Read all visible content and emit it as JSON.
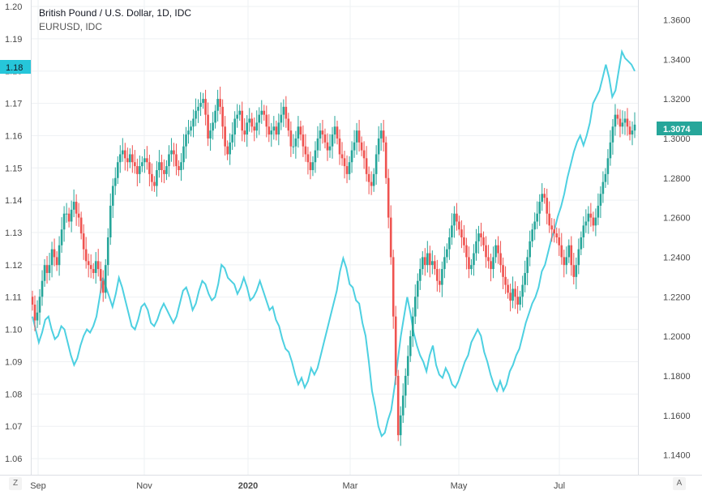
{
  "legend": {
    "title": "British Pound / U.S. Dollar, 1D, IDC",
    "series2": "EURUSD, IDC"
  },
  "buttons": {
    "left": "Z",
    "right": "A"
  },
  "colors": {
    "up": "#26a69a",
    "down": "#ef5350",
    "line": "#4dd0e1",
    "last_price_bg": "#26a69a",
    "left_tag_bg": "#26c6da",
    "grid": "#eef0f3"
  },
  "chart_data": {
    "type": "candlestick+line",
    "x_ticks": [
      "Sep",
      "Nov",
      "2020",
      "Mar",
      "May",
      "Jul"
    ],
    "left_axis": {
      "series": "EURUSD, IDC",
      "ticks": [
        "1.20",
        "1.19",
        "1.18",
        "1.17",
        "1.16",
        "1.15",
        "1.14",
        "1.13",
        "1.12",
        "1.11",
        "1.10",
        "1.09",
        "1.08",
        "1.07",
        "1.06"
      ],
      "range": [
        1.055,
        1.202
      ],
      "current": "1.18"
    },
    "right_axis": {
      "series": "British Pound / U.S. Dollar",
      "ticks": [
        "1.3600",
        "1.3400",
        "1.3200",
        "1.3000",
        "1.2800",
        "1.2600",
        "1.2400",
        "1.2200",
        "1.2000",
        "1.1800",
        "1.1600",
        "1.1400"
      ],
      "range": [
        1.13,
        1.37
      ],
      "current": "1.3074"
    },
    "gbpusd_close": [
      1.216,
      1.208,
      1.212,
      1.22,
      1.228,
      1.236,
      1.232,
      1.236,
      1.244,
      1.24,
      1.236,
      1.246,
      1.254,
      1.262,
      1.262,
      1.258,
      1.264,
      1.268,
      1.262,
      1.26,
      1.252,
      1.244,
      1.238,
      1.236,
      1.234,
      1.232,
      1.238,
      1.234,
      1.228,
      1.222,
      1.236,
      1.25,
      1.266,
      1.276,
      1.28,
      1.288,
      1.292,
      1.294,
      1.29,
      1.288,
      1.292,
      1.288,
      1.286,
      1.282,
      1.286,
      1.288,
      1.29,
      1.288,
      1.282,
      1.278,
      1.276,
      1.284,
      1.288,
      1.284,
      1.282,
      1.286,
      1.292,
      1.294,
      1.292,
      1.286,
      1.284,
      1.288,
      1.296,
      1.302,
      1.304,
      1.306,
      1.31,
      1.314,
      1.316,
      1.318,
      1.32,
      1.312,
      1.3,
      1.304,
      1.308,
      1.314,
      1.32,
      1.316,
      1.306,
      1.296,
      1.292,
      1.298,
      1.302,
      1.31,
      1.312,
      1.314,
      1.304,
      1.302,
      1.308,
      1.31,
      1.306,
      1.304,
      1.308,
      1.312,
      1.314,
      1.312,
      1.306,
      1.302,
      1.304,
      1.306,
      1.302,
      1.308,
      1.312,
      1.316,
      1.31,
      1.304,
      1.296,
      1.296,
      1.3,
      1.306,
      1.302,
      1.296,
      1.292,
      1.288,
      1.284,
      1.288,
      1.294,
      1.3,
      1.304,
      1.302,
      1.298,
      1.294,
      1.296,
      1.302,
      1.306,
      1.3,
      1.292,
      1.29,
      1.286,
      1.282,
      1.288,
      1.294,
      1.298,
      1.304,
      1.298,
      1.294,
      1.29,
      1.282,
      1.278,
      1.276,
      1.282,
      1.292,
      1.3,
      1.304,
      1.298,
      1.28,
      1.26,
      1.24,
      1.21,
      1.18,
      1.15,
      1.16,
      1.17,
      1.18,
      1.19,
      1.2,
      1.21,
      1.22,
      1.228,
      1.234,
      1.24,
      1.236,
      1.242,
      1.236,
      1.238,
      1.234,
      1.228,
      1.226,
      1.234,
      1.24,
      1.244,
      1.25,
      1.256,
      1.262,
      1.258,
      1.254,
      1.25,
      1.246,
      1.24,
      1.234,
      1.236,
      1.242,
      1.248,
      1.252,
      1.25,
      1.246,
      1.24,
      1.238,
      1.234,
      1.24,
      1.246,
      1.242,
      1.236,
      1.23,
      1.226,
      1.222,
      1.218,
      1.224,
      1.22,
      1.216,
      1.22,
      1.226,
      1.232,
      1.24,
      1.248,
      1.254,
      1.258,
      1.262,
      1.268,
      1.272,
      1.27,
      1.262,
      1.256,
      1.254,
      1.252,
      1.25,
      1.246,
      1.24,
      1.236,
      1.24,
      1.246,
      1.236,
      1.23,
      1.236,
      1.244,
      1.25,
      1.256,
      1.258,
      1.262,
      1.26,
      1.256,
      1.26,
      1.266,
      1.272,
      1.278,
      1.282,
      1.29,
      1.298,
      1.306,
      1.312,
      1.31,
      1.306,
      1.308,
      1.31,
      1.306,
      1.302,
      1.304,
      1.307
    ],
    "eurusd_line": [
      1.104,
      1.1,
      1.096,
      1.099,
      1.103,
      1.104,
      1.1,
      1.097,
      1.098,
      1.101,
      1.1,
      1.096,
      1.092,
      1.089,
      1.091,
      1.095,
      1.098,
      1.1,
      1.099,
      1.101,
      1.104,
      1.11,
      1.116,
      1.113,
      1.11,
      1.107,
      1.111,
      1.116,
      1.113,
      1.109,
      1.105,
      1.101,
      1.1,
      1.103,
      1.107,
      1.108,
      1.106,
      1.102,
      1.101,
      1.103,
      1.106,
      1.108,
      1.106,
      1.104,
      1.102,
      1.104,
      1.108,
      1.112,
      1.113,
      1.11,
      1.106,
      1.108,
      1.112,
      1.115,
      1.114,
      1.111,
      1.109,
      1.11,
      1.114,
      1.12,
      1.119,
      1.116,
      1.115,
      1.114,
      1.111,
      1.113,
      1.116,
      1.113,
      1.109,
      1.11,
      1.112,
      1.115,
      1.112,
      1.109,
      1.106,
      1.107,
      1.103,
      1.101,
      1.097,
      1.094,
      1.093,
      1.09,
      1.086,
      1.083,
      1.085,
      1.082,
      1.084,
      1.088,
      1.086,
      1.088,
      1.092,
      1.096,
      1.1,
      1.104,
      1.108,
      1.112,
      1.118,
      1.122,
      1.119,
      1.114,
      1.113,
      1.109,
      1.108,
      1.102,
      1.098,
      1.09,
      1.081,
      1.076,
      1.07,
      1.067,
      1.068,
      1.072,
      1.075,
      1.082,
      1.09,
      1.098,
      1.104,
      1.11,
      1.105,
      1.099,
      1.095,
      1.092,
      1.09,
      1.087,
      1.092,
      1.095,
      1.089,
      1.086,
      1.085,
      1.088,
      1.086,
      1.083,
      1.082,
      1.084,
      1.087,
      1.09,
      1.092,
      1.096,
      1.098,
      1.1,
      1.098,
      1.093,
      1.09,
      1.086,
      1.083,
      1.081,
      1.084,
      1.081,
      1.083,
      1.087,
      1.089,
      1.092,
      1.094,
      1.098,
      1.102,
      1.105,
      1.108,
      1.11,
      1.113,
      1.118,
      1.12,
      1.124,
      1.128,
      1.131,
      1.135,
      1.138,
      1.142,
      1.147,
      1.151,
      1.155,
      1.158,
      1.16,
      1.157,
      1.16,
      1.164,
      1.17,
      1.172,
      1.174,
      1.178,
      1.182,
      1.178,
      1.172,
      1.174,
      1.18,
      1.186,
      1.184,
      1.183,
      1.182,
      1.18
    ],
    "eurusd_line_full": true
  }
}
